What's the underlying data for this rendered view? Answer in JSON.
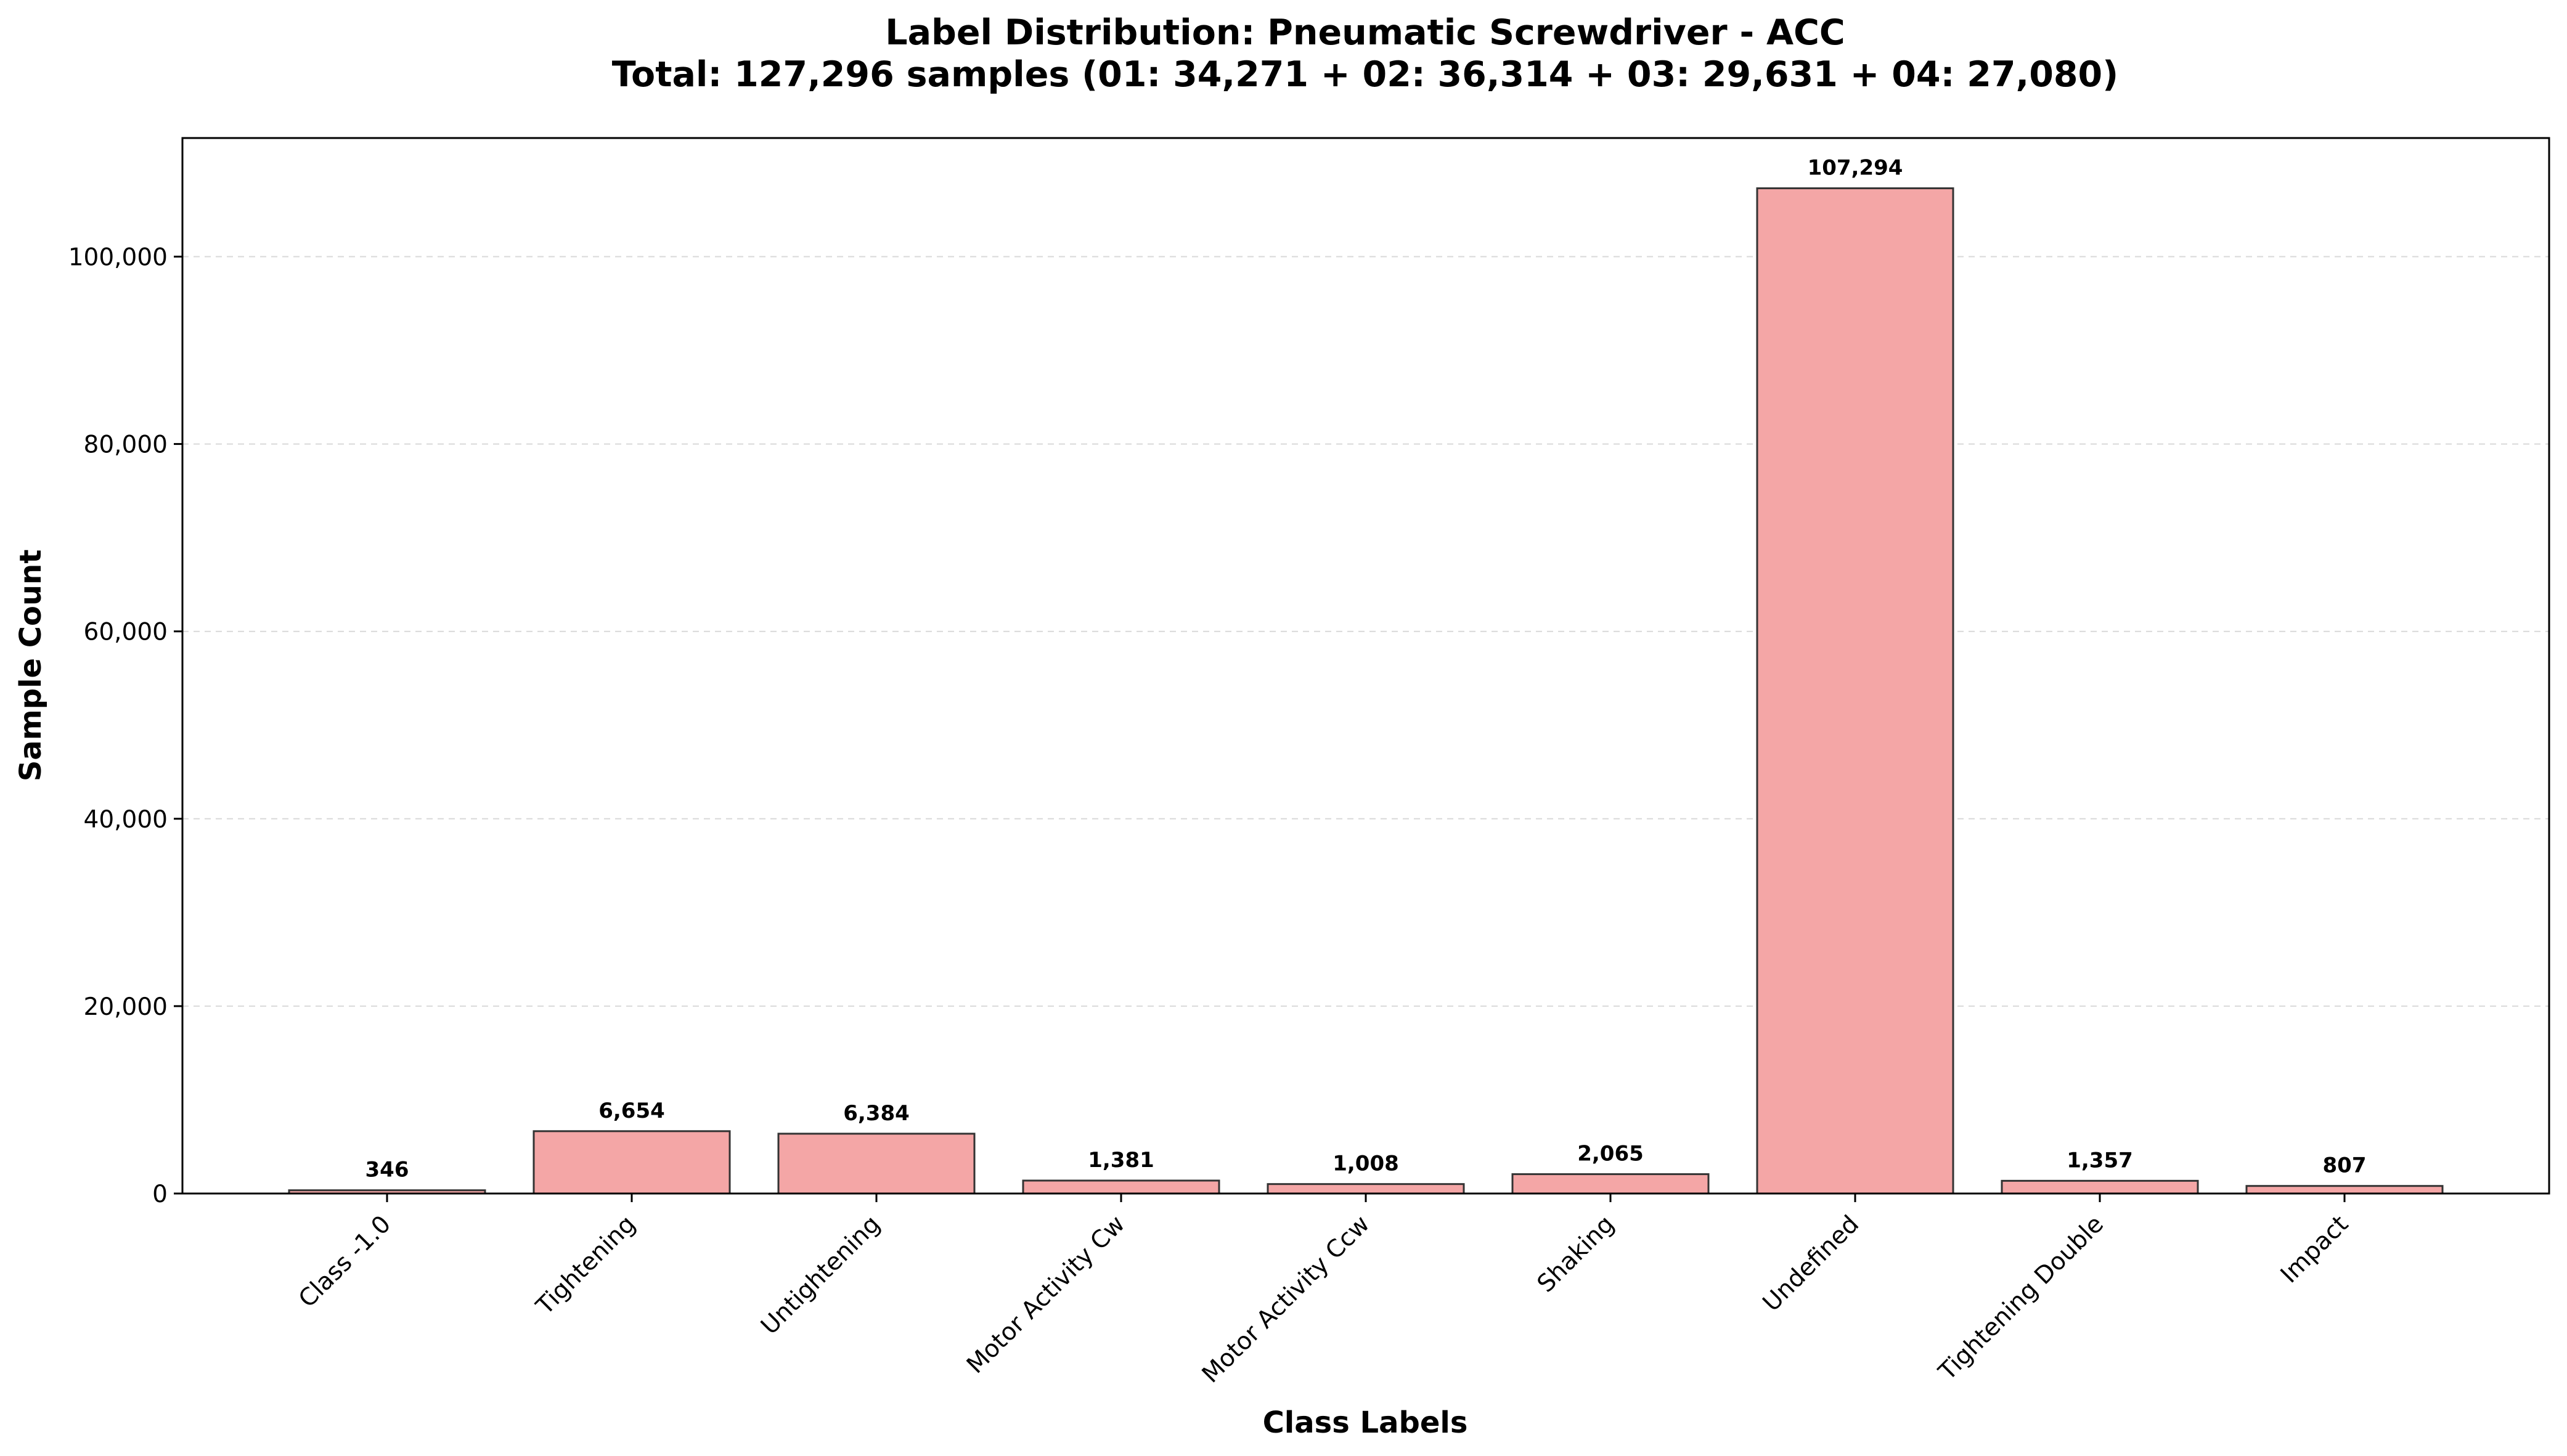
{
  "chart_data": {
    "type": "bar",
    "title": "Label Distribution: Pneumatic Screwdriver - ACC",
    "subtitle": "Total: 127,296 samples (01: 34,271 + 02: 36,314 + 03: 29,631 + 04: 27,080)",
    "xlabel": "Class Labels",
    "ylabel": "Sample Count",
    "categories": [
      "Class -1.0",
      "Tightening",
      "Untightening",
      "Motor Activity Cw",
      "Motor Activity Ccw",
      "Shaking",
      "Undefined",
      "Tightening Double",
      "Impact"
    ],
    "values": [
      346,
      6654,
      6384,
      1381,
      1008,
      2065,
      107294,
      1357,
      807
    ],
    "value_labels": [
      "346",
      "6,654",
      "6,384",
      "1,381",
      "1,008",
      "2,065",
      "107,294",
      "1,357",
      "807"
    ],
    "yticks": [
      0,
      20000,
      40000,
      60000,
      80000,
      100000
    ],
    "ytick_labels": [
      "0",
      "20,000",
      "40,000",
      "60,000",
      "80,000",
      "100,000"
    ],
    "ylim": [
      0,
      112659
    ],
    "grid": "y-dashed",
    "legend": "none",
    "colors": {
      "bar_fill": "#f4a6a6",
      "bar_edge": "#333333",
      "grid": "#d9d9d9",
      "axis": "#000000"
    }
  }
}
